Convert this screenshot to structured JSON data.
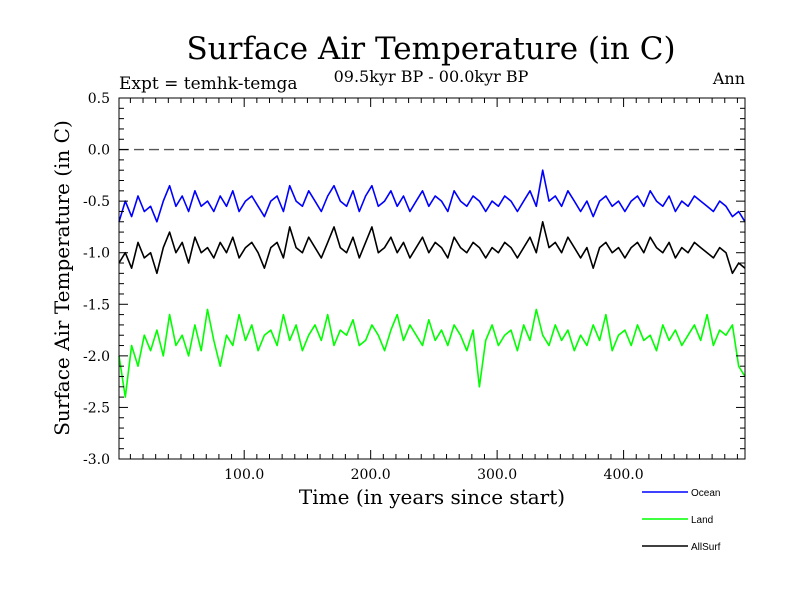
{
  "chart_data": {
    "type": "line",
    "title": "Surface Air Temperature (in C)",
    "subtitle": "09.5kyr BP - 00.0kyr BP",
    "left_label": "Expt = temhk-temga",
    "right_label": "Ann",
    "xlabel": "Time (in years since start)",
    "ylabel": "Surface Air Temperature (in C)",
    "xlim": [
      1,
      496
    ],
    "ylim": [
      -3.0,
      0.5
    ],
    "x_ticks": [
      100,
      200,
      300,
      400
    ],
    "x_tick_labels": [
      "100.0",
      "200.0",
      "300.0",
      "400.0"
    ],
    "y_ticks": [
      0.5,
      0.0,
      -0.5,
      -1.0,
      -1.5,
      -2.0,
      -2.5,
      -3.0
    ],
    "y_tick_labels": [
      "0.5",
      "0.0",
      "-0.5",
      "-1.0",
      "-1.5",
      "-2.0",
      "-2.5",
      "-3.0"
    ],
    "reference_line": 0.0,
    "legend_position": "bottom-right outside",
    "series": [
      {
        "name": "Ocean",
        "color": "#0000ff",
        "x_start": 1,
        "x_step": 5,
        "values": [
          -0.7,
          -0.5,
          -0.65,
          -0.45,
          -0.6,
          -0.55,
          -0.7,
          -0.5,
          -0.35,
          -0.55,
          -0.45,
          -0.6,
          -0.4,
          -0.55,
          -0.5,
          -0.6,
          -0.45,
          -0.55,
          -0.4,
          -0.6,
          -0.5,
          -0.45,
          -0.55,
          -0.65,
          -0.5,
          -0.45,
          -0.6,
          -0.35,
          -0.5,
          -0.55,
          -0.4,
          -0.5,
          -0.6,
          -0.45,
          -0.35,
          -0.5,
          -0.55,
          -0.4,
          -0.6,
          -0.45,
          -0.35,
          -0.55,
          -0.5,
          -0.4,
          -0.55,
          -0.45,
          -0.6,
          -0.5,
          -0.4,
          -0.55,
          -0.45,
          -0.5,
          -0.6,
          -0.4,
          -0.5,
          -0.55,
          -0.45,
          -0.5,
          -0.6,
          -0.5,
          -0.55,
          -0.45,
          -0.5,
          -0.6,
          -0.5,
          -0.4,
          -0.55,
          -0.2,
          -0.5,
          -0.45,
          -0.55,
          -0.4,
          -0.5,
          -0.6,
          -0.5,
          -0.65,
          -0.5,
          -0.45,
          -0.55,
          -0.5,
          -0.6,
          -0.5,
          -0.45,
          -0.55,
          -0.4,
          -0.5,
          -0.55,
          -0.45,
          -0.6,
          -0.5,
          -0.55,
          -0.45,
          -0.5,
          -0.55,
          -0.6,
          -0.5,
          -0.55,
          -0.65,
          -0.6,
          -0.7
        ]
      },
      {
        "name": "Land",
        "color": "#00ff00",
        "x_start": 1,
        "x_step": 5,
        "values": [
          -2.0,
          -2.4,
          -1.9,
          -2.1,
          -1.8,
          -1.95,
          -1.75,
          -2.0,
          -1.6,
          -1.9,
          -1.8,
          -2.0,
          -1.7,
          -1.95,
          -1.55,
          -1.85,
          -2.1,
          -1.8,
          -1.9,
          -1.6,
          -1.85,
          -1.7,
          -1.95,
          -1.8,
          -1.75,
          -1.9,
          -1.6,
          -1.85,
          -1.7,
          -1.95,
          -1.8,
          -1.7,
          -1.85,
          -1.6,
          -1.9,
          -1.75,
          -1.8,
          -1.65,
          -1.9,
          -1.85,
          -1.7,
          -1.8,
          -1.95,
          -1.75,
          -1.6,
          -1.85,
          -1.7,
          -1.8,
          -1.9,
          -1.65,
          -1.85,
          -1.75,
          -1.9,
          -1.7,
          -1.8,
          -1.95,
          -1.75,
          -2.3,
          -1.85,
          -1.7,
          -1.9,
          -1.8,
          -1.75,
          -1.95,
          -1.7,
          -1.85,
          -1.55,
          -1.8,
          -1.9,
          -1.7,
          -1.85,
          -1.75,
          -1.95,
          -1.8,
          -1.9,
          -1.7,
          -1.85,
          -1.6,
          -1.95,
          -1.8,
          -1.75,
          -1.9,
          -1.7,
          -1.85,
          -1.8,
          -1.95,
          -1.7,
          -1.85,
          -1.75,
          -1.9,
          -1.8,
          -1.7,
          -1.85,
          -1.6,
          -1.9,
          -1.75,
          -1.8,
          -1.7,
          -2.1,
          -2.2
        ]
      },
      {
        "name": "AllSurf",
        "color": "#000000",
        "x_start": 1,
        "x_step": 5,
        "values": [
          -1.1,
          -1.0,
          -1.15,
          -0.9,
          -1.05,
          -1.0,
          -1.2,
          -0.95,
          -0.8,
          -1.0,
          -0.9,
          -1.1,
          -0.85,
          -1.0,
          -0.95,
          -1.05,
          -0.9,
          -1.0,
          -0.85,
          -1.05,
          -0.95,
          -0.9,
          -1.0,
          -1.15,
          -0.95,
          -0.9,
          -1.05,
          -0.75,
          -0.95,
          -1.0,
          -0.85,
          -0.95,
          -1.05,
          -0.9,
          -0.75,
          -0.95,
          -1.0,
          -0.85,
          -1.05,
          -0.9,
          -0.75,
          -1.0,
          -0.95,
          -0.85,
          -1.0,
          -0.9,
          -1.05,
          -0.95,
          -0.85,
          -1.0,
          -0.9,
          -0.95,
          -1.05,
          -0.85,
          -0.95,
          -1.0,
          -0.9,
          -0.95,
          -1.05,
          -0.95,
          -1.0,
          -0.9,
          -0.95,
          -1.05,
          -0.95,
          -0.85,
          -1.0,
          -0.7,
          -0.95,
          -0.9,
          -1.0,
          -0.85,
          -0.95,
          -1.05,
          -0.95,
          -1.15,
          -0.95,
          -0.9,
          -1.0,
          -0.95,
          -1.05,
          -0.95,
          -0.9,
          -1.0,
          -0.85,
          -0.95,
          -1.0,
          -0.9,
          -1.05,
          -0.95,
          -1.0,
          -0.9,
          -0.95,
          -1.0,
          -1.05,
          -0.95,
          -1.0,
          -1.2,
          -1.1,
          -1.15
        ]
      }
    ]
  }
}
